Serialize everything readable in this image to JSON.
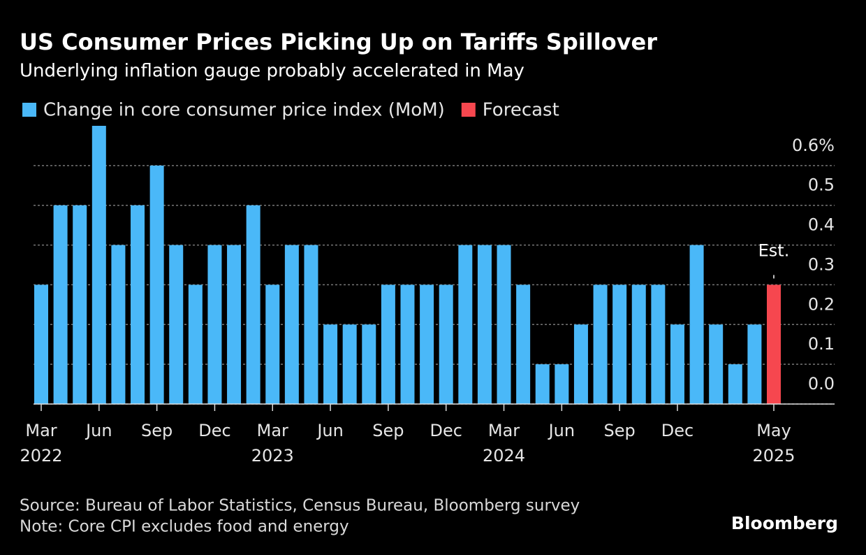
{
  "chart_data": {
    "type": "bar",
    "title": "US Consumer Prices Picking Up on Tariffs Spillover",
    "subtitle": "Underlying inflation gauge probably accelerated in May",
    "categories": [
      "Mar",
      null,
      null,
      "Jun",
      null,
      null,
      "Sep",
      null,
      null,
      "Dec",
      null,
      null,
      "Mar",
      null,
      null,
      "Jun",
      null,
      null,
      "Sep",
      null,
      null,
      "Dec",
      null,
      null,
      "Mar",
      null,
      null,
      "Jun",
      null,
      null,
      "Sep",
      null,
      null,
      "Dec",
      null,
      null,
      null,
      null,
      "May"
    ],
    "years": [
      "2022",
      null,
      null,
      null,
      null,
      null,
      null,
      null,
      null,
      null,
      null,
      null,
      "2023",
      null,
      null,
      null,
      null,
      null,
      null,
      null,
      null,
      null,
      null,
      null,
      "2024",
      null,
      null,
      null,
      null,
      null,
      null,
      null,
      null,
      null,
      null,
      null,
      null,
      null,
      "2025"
    ],
    "series": [
      {
        "name": "Change in core consumer price index (MoM)",
        "color": "#4ab8f8",
        "values": [
          0.3,
          0.5,
          0.5,
          0.7,
          0.4,
          0.5,
          0.6,
          0.4,
          0.3,
          0.4,
          0.4,
          0.5,
          0.3,
          0.4,
          0.4,
          0.2,
          0.2,
          0.2,
          0.3,
          0.3,
          0.3,
          0.3,
          0.4,
          0.4,
          0.4,
          0.3,
          0.1,
          0.1,
          0.2,
          0.3,
          0.3,
          0.3,
          0.3,
          0.2,
          0.4,
          0.2,
          0.1,
          0.2,
          null
        ]
      },
      {
        "name": "Forecast",
        "color": "#f6474f",
        "values": [
          null,
          null,
          null,
          null,
          null,
          null,
          null,
          null,
          null,
          null,
          null,
          null,
          null,
          null,
          null,
          null,
          null,
          null,
          null,
          null,
          null,
          null,
          null,
          null,
          null,
          null,
          null,
          null,
          null,
          null,
          null,
          null,
          null,
          null,
          null,
          null,
          null,
          null,
          0.3
        ]
      }
    ],
    "annotation": "Est.",
    "ylim": [
      0,
      0.7
    ],
    "yticks": [
      {
        "value": 0,
        "label": "0.0"
      },
      0.1,
      0.2,
      0.3,
      0.4,
      0.5,
      {
        "value": 0.6,
        "label": "0.6%"
      }
    ],
    "grid": true,
    "source": "Source: Bureau of Labor Statistics, Census Bureau, Bloomberg survey",
    "note": "Note: Core CPI excludes food and energy",
    "brand": "Bloomberg"
  }
}
